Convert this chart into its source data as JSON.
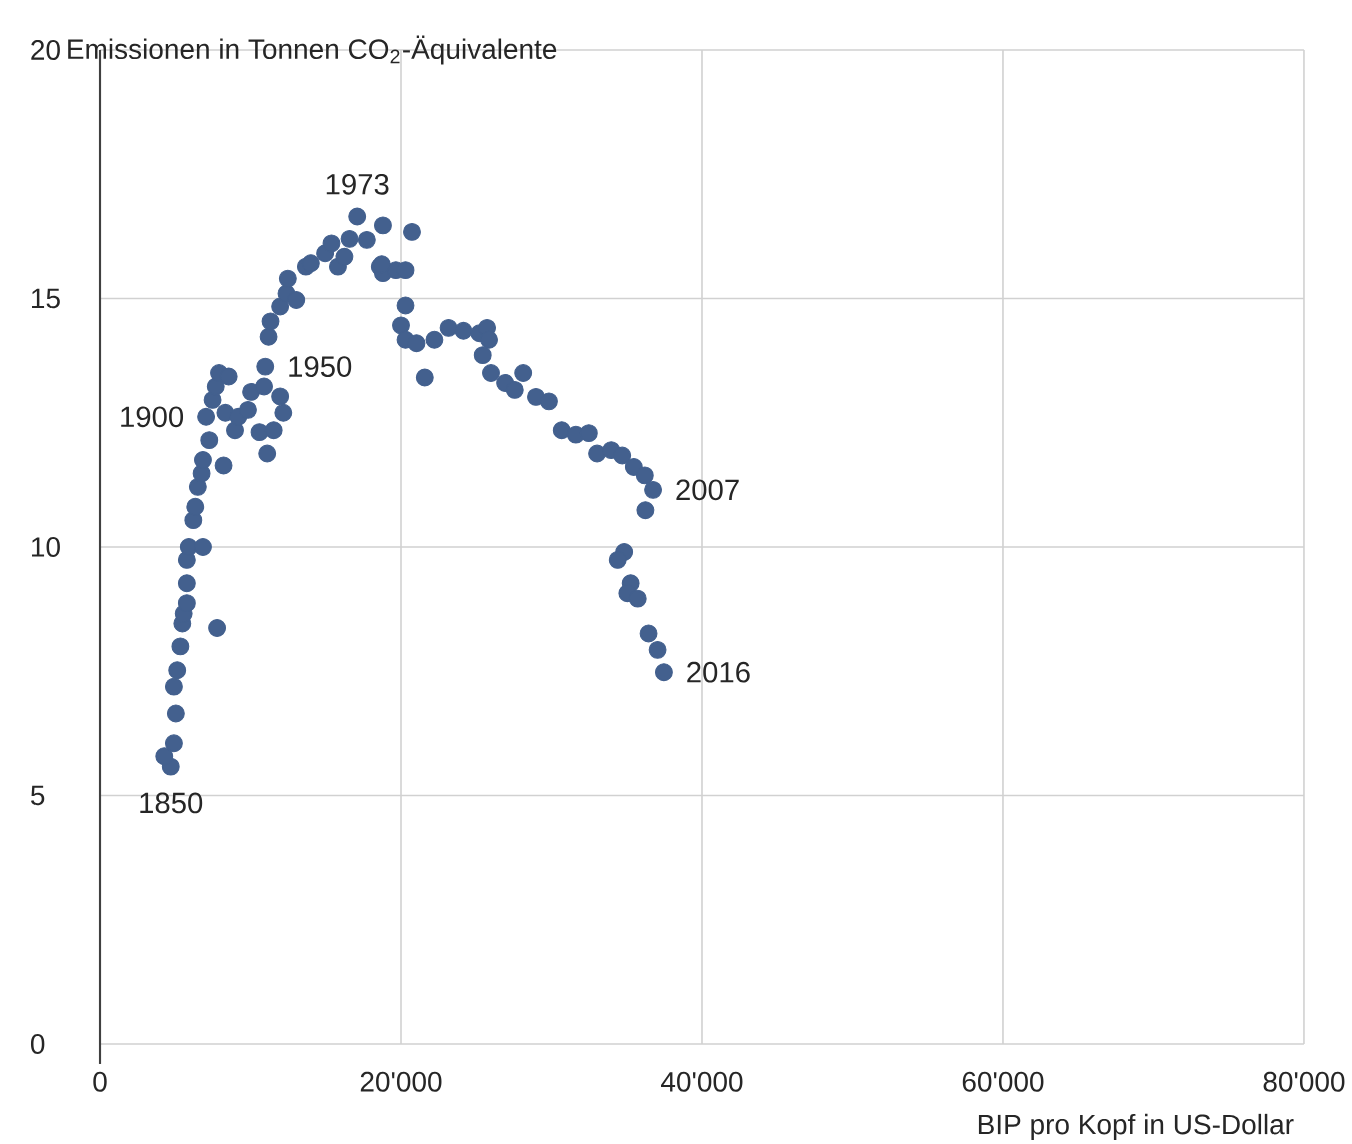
{
  "chart_data": {
    "type": "scatter",
    "ylabel": "Emissionen in Tonnen CO$_{2}$-Äquivalente",
    "xlabel": "BIP pro Kopf in US-Dollar",
    "color": "#43608e",
    "marker": "circle",
    "grid": true,
    "xlim": [
      0,
      80000
    ],
    "ylim": [
      0,
      20
    ],
    "xticks": [
      0,
      {
        "value": 20000,
        "label": "20'000"
      },
      {
        "value": 40000,
        "label": "40'000"
      },
      {
        "value": 60000,
        "label": "60'000"
      },
      {
        "value": 80000,
        "label": "80'000"
      }
    ],
    "yticks": [
      0,
      5,
      10,
      15,
      20
    ],
    "x": [
      4700,
      4270,
      4910,
      5040,
      4910,
      5130,
      5340,
      5470,
      5560,
      5770,
      5770,
      5770,
      5900,
      6840,
      6200,
      6330,
      6500,
      6750,
      6840,
      7780,
      8210,
      7260,
      7050,
      7480,
      7690,
      7910,
      8550,
      8330,
      8970,
      9190,
      9830,
      10040,
      10600,
      11110,
      10900,
      10980,
      11540,
      12180,
      11970,
      11200,
      11330,
      11970,
      12390,
      12480,
      13040,
      13680,
      14010,
      14960,
      15380,
      15810,
      16240,
      16580,
      17090,
      17730,
      18800,
      18590,
      18800,
      19660,
      20730,
      18720,
      20300,
      20300,
      20000,
      20300,
      21030,
      21580,
      22220,
      23160,
      24150,
      25210,
      25720,
      25850,
      25430,
      25980,
      26920,
      27560,
      28120,
      28970,
      29830,
      30680,
      31620,
      32480,
      33030,
      33970,
      34700,
      35470,
      36200,
      36750,
      36240,
      34830,
      34400,
      35260,
      35040,
      35730,
      36450,
      37050,
      37470
    ],
    "values": [
      5.58,
      5.79,
      6.05,
      6.65,
      7.19,
      7.52,
      8.0,
      8.46,
      8.66,
      8.87,
      9.27,
      9.74,
      10.0,
      10.0,
      10.54,
      10.81,
      11.21,
      11.48,
      11.75,
      8.37,
      11.64,
      12.15,
      12.62,
      12.96,
      13.23,
      13.5,
      13.43,
      12.7,
      12.35,
      12.62,
      12.76,
      13.12,
      12.31,
      11.88,
      13.23,
      13.63,
      12.35,
      12.7,
      13.03,
      14.23,
      14.54,
      14.84,
      15.1,
      15.4,
      14.97,
      15.64,
      15.71,
      15.91,
      16.11,
      15.64,
      15.84,
      16.2,
      16.65,
      16.18,
      16.47,
      15.64,
      15.51,
      15.57,
      16.34,
      15.69,
      15.57,
      14.86,
      14.46,
      14.17,
      14.1,
      13.41,
      14.17,
      14.41,
      14.35,
      14.3,
      14.41,
      14.17,
      13.86,
      13.5,
      13.3,
      13.16,
      13.5,
      13.02,
      12.93,
      12.35,
      12.26,
      12.29,
      11.88,
      11.95,
      11.84,
      11.61,
      11.44,
      11.15,
      10.74,
      9.9,
      9.74,
      9.27,
      9.07,
      8.96,
      8.26,
      7.93,
      7.48
    ],
    "annotations": [
      {
        "text": "1850",
        "x": 4700,
        "y": 5.58
      },
      {
        "text": "1900",
        "x": 7050,
        "y": 12.62
      },
      {
        "text": "1950",
        "x": 10980,
        "y": 13.63
      },
      {
        "text": "1973",
        "x": 17090,
        "y": 16.65
      },
      {
        "text": "2007",
        "x": 36750,
        "y": 11.15
      },
      {
        "text": "2016",
        "x": 37470,
        "y": 7.48
      }
    ]
  }
}
